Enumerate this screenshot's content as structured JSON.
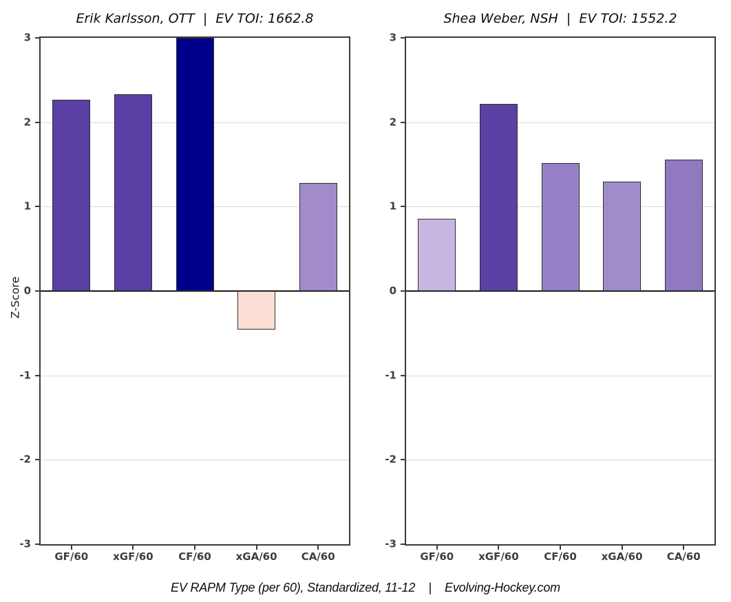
{
  "page": {
    "background": "#ffffff",
    "caption": "EV RAPM Type (per 60), Standardized, 11-12    |    Evolving-Hockey.com"
  },
  "axis": {
    "ylabel": "Z-Score",
    "ylim": [
      -3,
      3
    ],
    "yticks": [
      3,
      2,
      1,
      0,
      -1,
      -2,
      -3
    ],
    "gridlines": [
      2,
      1,
      -1,
      -2
    ],
    "tick_label_color": "#3f3f3f",
    "grid_color": "#d8d8d8",
    "spine_color": "#3a3a3a",
    "zero_line_color": "#1a1a1a"
  },
  "chart_data": [
    {
      "type": "bar",
      "title": "Erik Karlsson, OTT  |  EV TOI: 1662.8",
      "player": "Erik Karlsson",
      "team": "OTT",
      "ev_toi": "1662.8",
      "categories": [
        "GF/60",
        "xGF/60",
        "CF/60",
        "xGA/60",
        "CA/60"
      ],
      "values": [
        2.27,
        2.33,
        3.1,
        -0.46,
        1.28
      ],
      "clipped": [
        false,
        false,
        true,
        false,
        false
      ],
      "colors": [
        "#5a3fa4",
        "#5a3fa4",
        "#00008b",
        "#fcdfd4",
        "#a28bcb"
      ],
      "xlabel": "",
      "ylabel": "Z-Score",
      "ylim": [
        -3,
        3
      ]
    },
    {
      "type": "bar",
      "title": "Shea Weber, NSH  |  EV TOI: 1552.2",
      "player": "Shea Weber",
      "team": "NSH",
      "ev_toi": "1552.2",
      "categories": [
        "GF/60",
        "xGF/60",
        "CF/60",
        "xGA/60",
        "CA/60"
      ],
      "values": [
        0.86,
        2.22,
        1.52,
        1.3,
        1.56
      ],
      "clipped": [
        false,
        false,
        false,
        false,
        false
      ],
      "colors": [
        "#c7b6e2",
        "#5a41a4",
        "#9680c5",
        "#a18ccb",
        "#9179c0"
      ],
      "xlabel": "",
      "ylabel": "Z-Score",
      "ylim": [
        -3,
        3
      ]
    }
  ]
}
